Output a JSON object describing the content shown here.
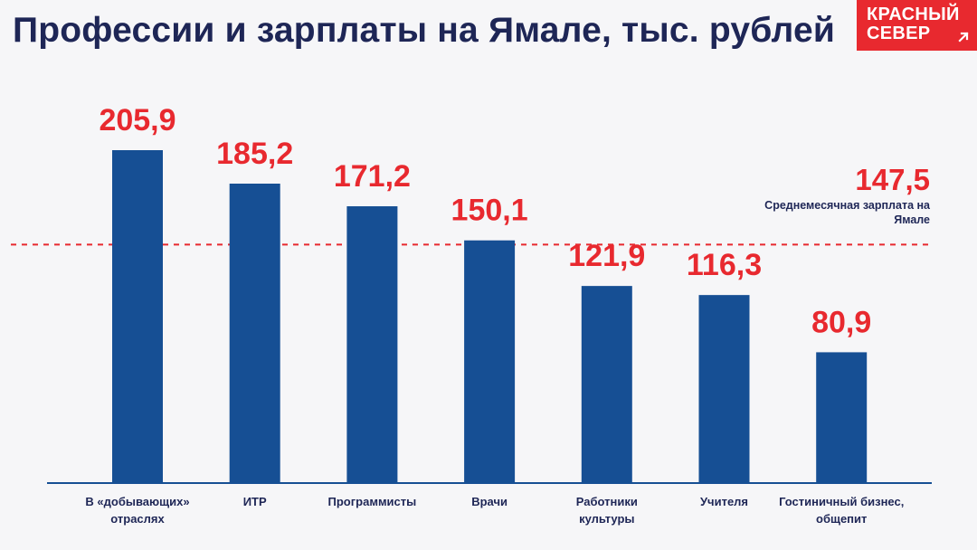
{
  "title": "Профессии и зарплаты на Ямале, тыс. рублей",
  "logo": {
    "line1": "КРАСНЫЙ",
    "line2": "СЕВЕР",
    "background": "#e8292f",
    "icon": "arrow-up-right-icon"
  },
  "colors": {
    "bar": "#164f94",
    "value_label": "#e8292f",
    "text": "#1e2656",
    "average_line": "#e8292f",
    "axis": "#164f94"
  },
  "chart_data": {
    "type": "bar",
    "title": "Профессии и зарплаты на Ямале, тыс. рублей",
    "categories": [
      [
        "В «добывающих»",
        "отраслях"
      ],
      [
        "ИТР"
      ],
      [
        "Программисты"
      ],
      [
        "Врачи"
      ],
      [
        "Работники",
        "культуры"
      ],
      [
        "Учителя"
      ],
      [
        "Гостиничный бизнес,",
        "общепит"
      ]
    ],
    "values": [
      205.9,
      185.2,
      171.2,
      150.1,
      121.9,
      116.3,
      80.9
    ],
    "value_labels": [
      "205,9",
      "185,2",
      "171,2",
      "150,1",
      "121,9",
      "116,3",
      "80,9"
    ],
    "ylim": [
      0,
      205.9
    ],
    "grid": false,
    "legend": "none",
    "reference_line": {
      "value": 147.5,
      "value_label": "147,5",
      "label": "Среднемесячная зарплата на Ямале",
      "style": "dashed"
    }
  }
}
